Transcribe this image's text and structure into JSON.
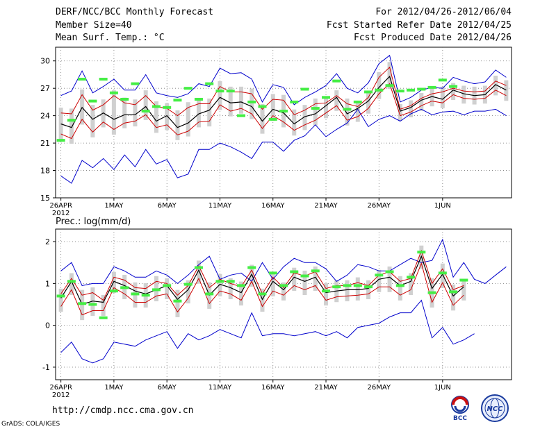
{
  "header": {
    "title": "DERF/NCC/BCC Monthly Forecast",
    "member_size": "Member Size=40",
    "variable": "Mean Surf. Temp.: °C",
    "period": "For 2012/04/26-2012/06/04",
    "started": "Fcst Started Refer Date 2012/04/25",
    "produced": "Fcst Produced Date 2012/04/26"
  },
  "footer": {
    "url": "http://cmdp.ncc.cma.gov.cn",
    "grads": "GrADS: COLA/IGES",
    "logo_left_text": "BCC",
    "logo_right_text": "NCC"
  },
  "colors": {
    "max": "#0000cc",
    "min": "#0000cc",
    "mean": "#000000",
    "spread": "#cc0000",
    "box": "#d0d0d0",
    "obs": "#44ee44"
  },
  "chart_data": [
    {
      "type": "line",
      "title": "Mean Surf. Temp.: °C",
      "x_tick_labels": [
        "26APR",
        "1MAY",
        "6MAY",
        "11MAY",
        "16MAY",
        "21MAY",
        "26MAY",
        "1JUN"
      ],
      "x_tick_index": [
        0,
        5,
        10,
        15,
        20,
        25,
        30,
        36
      ],
      "year_label": "2012",
      "ylim": [
        15,
        31.5
      ],
      "yticks": [
        15,
        18,
        21,
        24,
        27,
        30
      ],
      "series": [
        {
          "name": "max",
          "values": [
            26.2,
            26.7,
            28.9,
            26.5,
            27.2,
            28.0,
            26.8,
            26.8,
            28.5,
            26.5,
            26.2,
            26.0,
            26.4,
            27.5,
            27.2,
            29.2,
            28.6,
            28.7,
            28.0,
            25.5,
            27.4,
            27.1,
            25.2,
            26.0,
            26.6,
            27.3,
            28.6,
            27.0,
            26.5,
            27.6,
            29.7,
            30.6,
            25.5,
            26.0,
            26.8,
            27.1,
            27.0,
            28.2,
            27.8,
            27.5,
            27.7,
            29.0,
            28.2
          ]
        },
        {
          "name": "spread_high",
          "values": [
            24.3,
            24.2,
            26.3,
            24.6,
            25.2,
            26.2,
            25.4,
            25.2,
            26.2,
            25.0,
            24.8,
            24.0,
            24.9,
            25.3,
            25.3,
            27.2,
            26.6,
            26.6,
            26.4,
            24.7,
            25.8,
            25.7,
            24.1,
            24.6,
            25.3,
            25.4,
            26.2,
            25.3,
            25.0,
            26.0,
            28.2,
            29.3,
            24.7,
            25.1,
            25.9,
            26.4,
            26.6,
            27.0,
            26.7,
            26.6,
            26.7,
            27.8,
            27.3
          ]
        },
        {
          "name": "mean",
          "values": [
            23.1,
            22.7,
            24.9,
            23.6,
            24.3,
            23.6,
            24.1,
            24.1,
            25.0,
            23.4,
            24.0,
            22.7,
            23.2,
            24.2,
            24.6,
            26.0,
            25.4,
            25.5,
            25.0,
            23.4,
            24.7,
            24.3,
            23.1,
            23.9,
            24.2,
            25.1,
            26.0,
            24.2,
            24.8,
            25.6,
            27.1,
            28.3,
            24.5,
            24.9,
            25.7,
            26.1,
            25.8,
            26.8,
            26.4,
            26.2,
            26.3,
            27.4,
            26.8
          ]
        },
        {
          "name": "spread_low",
          "values": [
            22.0,
            21.5,
            23.6,
            22.2,
            23.3,
            22.5,
            23.2,
            23.4,
            24.1,
            22.7,
            23.0,
            21.9,
            22.3,
            23.3,
            23.4,
            25.2,
            24.5,
            24.8,
            24.2,
            22.6,
            24.0,
            23.3,
            22.4,
            23.0,
            23.5,
            24.3,
            25.1,
            23.5,
            23.9,
            24.8,
            26.4,
            27.5,
            24.0,
            24.4,
            25.1,
            25.6,
            25.4,
            26.3,
            25.9,
            25.8,
            25.9,
            26.8,
            26.2
          ]
        },
        {
          "name": "min",
          "values": [
            17.4,
            16.6,
            19.1,
            18.3,
            19.3,
            18.1,
            19.7,
            18.4,
            20.3,
            18.7,
            19.2,
            17.2,
            17.6,
            20.3,
            20.3,
            21.0,
            20.6,
            20.0,
            19.3,
            21.1,
            21.1,
            20.1,
            21.3,
            21.8,
            23.0,
            21.7,
            22.5,
            23.2,
            24.7,
            22.8,
            23.6,
            24.0,
            23.4,
            24.2,
            24.7,
            24.1,
            24.4,
            24.5,
            24.1,
            24.5,
            24.5,
            24.7,
            24.0
          ]
        },
        {
          "name": "obs",
          "values": [
            21.3,
            23.5,
            28.0,
            25.6,
            28.0,
            26.5,
            25.8,
            27.5,
            24.5,
            25.0,
            24.9,
            25.7,
            27.0,
            25.8,
            27.5,
            26.7,
            26.7,
            24.0,
            25.5,
            25.0,
            23.6,
            24.5,
            25.5,
            26.9,
            24.8,
            26.0,
            27.8,
            24.7,
            25.5,
            26.6,
            26.8,
            27.3,
            26.7,
            26.8,
            26.9,
            27.1,
            27.9,
            27.2
          ]
        }
      ]
    },
    {
      "type": "line",
      "title": "Prec.: log(mm/d)",
      "x_tick_labels": [
        "26APR",
        "1MAY",
        "6MAY",
        "11MAY",
        "16MAY",
        "21MAY",
        "26MAY",
        "1JUN"
      ],
      "x_tick_index": [
        0,
        5,
        10,
        15,
        20,
        25,
        30,
        36
      ],
      "year_label": "2012",
      "ylim": [
        -1.3,
        2.3
      ],
      "yticks": [
        -1,
        0,
        1,
        2
      ],
      "series": [
        {
          "name": "max",
          "values": [
            1.3,
            1.5,
            0.95,
            1.0,
            1.0,
            1.4,
            1.3,
            1.15,
            1.15,
            1.3,
            1.2,
            1.0,
            1.2,
            1.45,
            1.65,
            1.1,
            1.2,
            1.25,
            1.05,
            1.5,
            1.1,
            1.4,
            1.6,
            1.5,
            1.5,
            1.35,
            1.05,
            1.2,
            1.45,
            1.4,
            1.3,
            1.3,
            1.45,
            1.6,
            1.5,
            1.55,
            2.05,
            1.15,
            1.5,
            1.1,
            1.0,
            1.2,
            1.4
          ]
        },
        {
          "name": "spread_high",
          "values": [
            0.75,
            1.12,
            0.72,
            0.78,
            0.6,
            1.15,
            1.08,
            0.9,
            0.88,
            1.05,
            1.0,
            0.72,
            0.95,
            1.42,
            0.9,
            1.1,
            1.0,
            0.92,
            1.32,
            0.75,
            1.15,
            0.9,
            1.25,
            1.18,
            1.28,
            0.88,
            0.95,
            0.95,
            1.02,
            0.95,
            1.2,
            1.28,
            1.05,
            1.12,
            1.78,
            1.0,
            1.35,
            0.85,
            0.95
          ]
        },
        {
          "name": "mean",
          "values": [
            0.65,
            1.05,
            0.5,
            0.58,
            0.55,
            1.05,
            0.95,
            0.82,
            0.75,
            0.85,
            0.95,
            0.62,
            0.85,
            1.32,
            0.72,
            0.98,
            0.9,
            0.78,
            1.22,
            0.62,
            1.05,
            0.85,
            1.15,
            1.05,
            1.15,
            0.78,
            0.82,
            0.85,
            0.85,
            0.88,
            1.1,
            1.15,
            0.95,
            1.05,
            1.65,
            0.88,
            1.22,
            0.7,
            0.92
          ]
        },
        {
          "name": "spread_low",
          "values": [
            0.45,
            0.85,
            0.25,
            0.35,
            0.35,
            0.9,
            0.75,
            0.55,
            0.55,
            0.7,
            0.75,
            0.32,
            0.65,
            1.12,
            0.52,
            0.82,
            0.75,
            0.6,
            1.05,
            0.45,
            0.82,
            0.72,
            0.95,
            0.85,
            0.95,
            0.6,
            0.68,
            0.7,
            0.72,
            0.75,
            0.92,
            0.92,
            0.72,
            0.85,
            1.48,
            0.55,
            1.02,
            0.48,
            0.72
          ]
        },
        {
          "name": "min",
          "values": [
            -0.65,
            -0.4,
            -0.8,
            -0.9,
            -0.8,
            -0.4,
            -0.45,
            -0.5,
            -0.35,
            -0.25,
            -0.15,
            -0.55,
            -0.2,
            -0.35,
            -0.25,
            -0.1,
            -0.2,
            -0.3,
            0.3,
            -0.25,
            -0.2,
            -0.2,
            -0.25,
            -0.2,
            -0.15,
            -0.25,
            -0.15,
            -0.3,
            -0.05,
            0.0,
            0.05,
            0.2,
            0.3,
            0.3,
            0.6,
            -0.3,
            -0.05,
            -0.45,
            -0.35,
            -0.2
          ]
        },
        {
          "name": "obs",
          "values": [
            0.7,
            1.05,
            0.52,
            0.5,
            0.18,
            0.82,
            0.9,
            0.75,
            0.72,
            0.85,
            0.95,
            0.58,
            0.98,
            1.38,
            0.75,
            1.05,
            1.05,
            0.95,
            1.38,
            0.75,
            1.25,
            0.95,
            1.28,
            1.18,
            1.3,
            0.82,
            0.92,
            0.95,
            0.95,
            0.92,
            1.2,
            1.28,
            0.95,
            1.15,
            1.75,
            0.78,
            1.25,
            0.8,
            1.08
          ]
        }
      ]
    }
  ]
}
